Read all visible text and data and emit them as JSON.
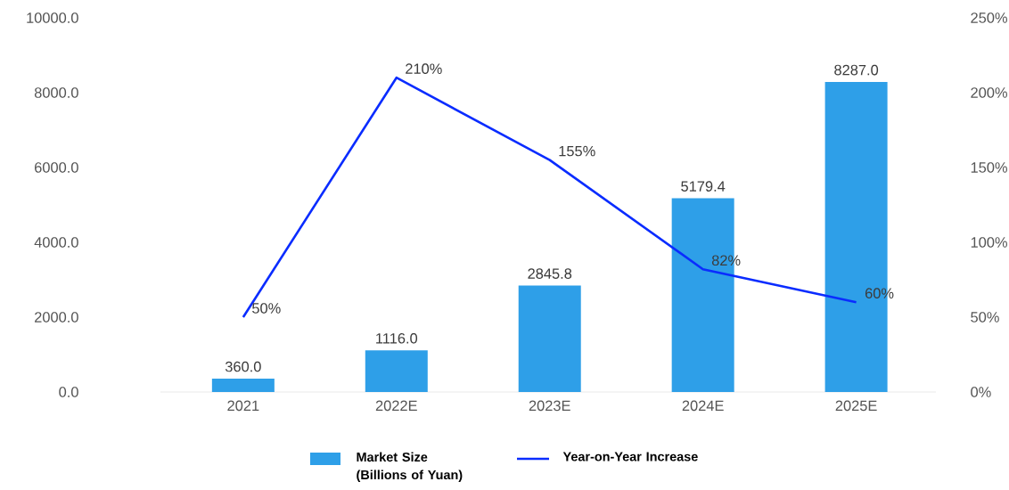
{
  "chart_data": {
    "type": "bar",
    "categories": [
      "2021",
      "2022E",
      "2023E",
      "2024E",
      "2025E"
    ],
    "series": [
      {
        "name": "Market Size (Billions of Yuan)",
        "color": "#2e9fe8",
        "values": [
          360.0,
          1116.0,
          2845.8,
          5179.4,
          8287.0
        ],
        "value_labels": [
          "360.0",
          "1116.0",
          "2845.8",
          "5179.4",
          "8287.0"
        ]
      },
      {
        "name": "Year-on-Year Increase",
        "type": "line",
        "axis": "y2",
        "color": "#0a2cff",
        "values": [
          50,
          210,
          155,
          82,
          60
        ],
        "value_labels": [
          "50%",
          "210%",
          "155%",
          "82%",
          "60%"
        ]
      }
    ],
    "ylim": [
      0,
      10000
    ],
    "yticks": [
      {
        "value": 0,
        "label": "0.0"
      },
      {
        "value": 2000,
        "label": "2000.0"
      },
      {
        "value": 4000,
        "label": "4000.0"
      },
      {
        "value": 6000,
        "label": "6000.0"
      },
      {
        "value": 8000,
        "label": "8000.0"
      },
      {
        "value": 10000,
        "label": "10000.0"
      }
    ],
    "y2lim": [
      0,
      250
    ],
    "y2ticks": [
      {
        "value": 0,
        "label": "0%"
      },
      {
        "value": 50,
        "label": "50%"
      },
      {
        "value": 100,
        "label": "100%"
      },
      {
        "value": 150,
        "label": "150%"
      },
      {
        "value": 200,
        "label": "200%"
      },
      {
        "value": 250,
        "label": "250%"
      }
    ],
    "legend": "bottom",
    "grid": false
  }
}
